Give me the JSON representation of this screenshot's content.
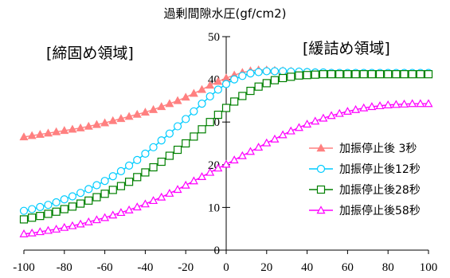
{
  "title": "過剰間隙水圧(gf/cm2)",
  "annotations": {
    "left_zone": "[締固め領域]",
    "right_zone": "[緩詰め領域]"
  },
  "colors": {
    "series1": "#ff8080",
    "series2": "#00ccff",
    "series3": "#008000",
    "series4": "#ff00ff"
  },
  "chart_data": {
    "type": "line",
    "title": "過剰間隙水圧(gf/cm2)",
    "xlabel": "",
    "ylabel": "",
    "xlim": [
      -100,
      100
    ],
    "ylim": [
      0,
      50
    ],
    "grid": false,
    "legend_position": "right",
    "x_ticks": [
      -100,
      -80,
      -60,
      -40,
      -20,
      0,
      20,
      40,
      60,
      80,
      100
    ],
    "y_ticks": [
      0,
      10,
      20,
      30,
      40,
      50
    ],
    "x": [
      -100,
      -96,
      -92,
      -88,
      -84,
      -80,
      -76,
      -72,
      -68,
      -64,
      -60,
      -56,
      -52,
      -48,
      -44,
      -40,
      -36,
      -32,
      -28,
      -24,
      -20,
      -16,
      -12,
      -8,
      -4,
      0,
      4,
      8,
      12,
      16,
      20,
      24,
      28,
      32,
      36,
      40,
      44,
      48,
      52,
      56,
      60,
      64,
      68,
      72,
      76,
      80,
      84,
      88,
      92,
      96,
      100
    ],
    "series": [
      {
        "name": "加振停止後 3秒",
        "marker": "triangle-filled",
        "values": [
          26.5,
          26.8,
          27.1,
          27.4,
          27.7,
          28,
          28.3,
          28.6,
          29,
          29.4,
          29.8,
          30.3,
          30.8,
          31.3,
          31.8,
          32.3,
          32.9,
          33.6,
          34.3,
          35,
          35.8,
          36.7,
          37.6,
          38.6,
          39.5,
          40.3,
          41,
          41.6,
          42,
          42.2,
          42.2,
          42.1,
          42,
          41.9,
          41.8,
          41.7,
          41.6,
          41.5,
          41.5,
          41.4,
          41.4,
          41.4,
          41.4,
          41.4,
          41.4,
          41.4,
          41.4,
          41.4,
          41.4,
          41.4,
          41.4
        ]
      },
      {
        "name": "加振停止後12秒",
        "marker": "circle-open",
        "values": [
          9.2,
          9.6,
          10.1,
          10.6,
          11.2,
          11.9,
          12.6,
          13.4,
          14.3,
          15.2,
          16.2,
          17.3,
          18.5,
          19.8,
          21.1,
          22.6,
          24.1,
          25.7,
          27.3,
          29,
          30.7,
          32.5,
          34.3,
          36,
          37.6,
          38.9,
          40,
          40.8,
          41.4,
          41.7,
          41.9,
          41.9,
          41.9,
          41.8,
          41.8,
          41.7,
          41.6,
          41.6,
          41.5,
          41.5,
          41.5,
          41.5,
          41.5,
          41.5,
          41.5,
          41.5,
          41.5,
          41.5,
          41.5,
          41.5,
          41.5
        ]
      },
      {
        "name": "加振停止後28秒",
        "marker": "square-open",
        "values": [
          7.2,
          7.6,
          8,
          8.5,
          9,
          9.6,
          10.2,
          10.9,
          11.6,
          12.4,
          13.2,
          14.1,
          15,
          16,
          17.1,
          18.2,
          19.4,
          20.7,
          22.1,
          23.5,
          25,
          26.6,
          28.3,
          30,
          31.7,
          33.3,
          34.8,
          36.1,
          37.3,
          38.3,
          39.1,
          39.8,
          40.3,
          40.6,
          40.9,
          41,
          41.1,
          41.2,
          41.2,
          41.2,
          41.2,
          41.2,
          41.2,
          41.2,
          41.2,
          41.2,
          41.2,
          41.2,
          41.2,
          41.2,
          41.2
        ]
      },
      {
        "name": "加振停止後58秒",
        "marker": "triangle-open",
        "values": [
          3.8,
          4,
          4.3,
          4.6,
          4.9,
          5.3,
          5.7,
          6.1,
          6.6,
          7.1,
          7.6,
          8.2,
          8.8,
          9.4,
          10.1,
          10.8,
          11.6,
          12.4,
          13.3,
          14.2,
          15.2,
          16.2,
          17.2,
          18.2,
          19.2,
          20.1,
          21.1,
          22.1,
          23.1,
          24.1,
          25.1,
          26,
          27,
          27.9,
          28.7,
          29.5,
          30.2,
          30.9,
          31.5,
          32,
          32.5,
          32.9,
          33.3,
          33.6,
          33.8,
          34,
          34.1,
          34.2,
          34.3,
          34.3,
          34.3
        ]
      }
    ]
  }
}
